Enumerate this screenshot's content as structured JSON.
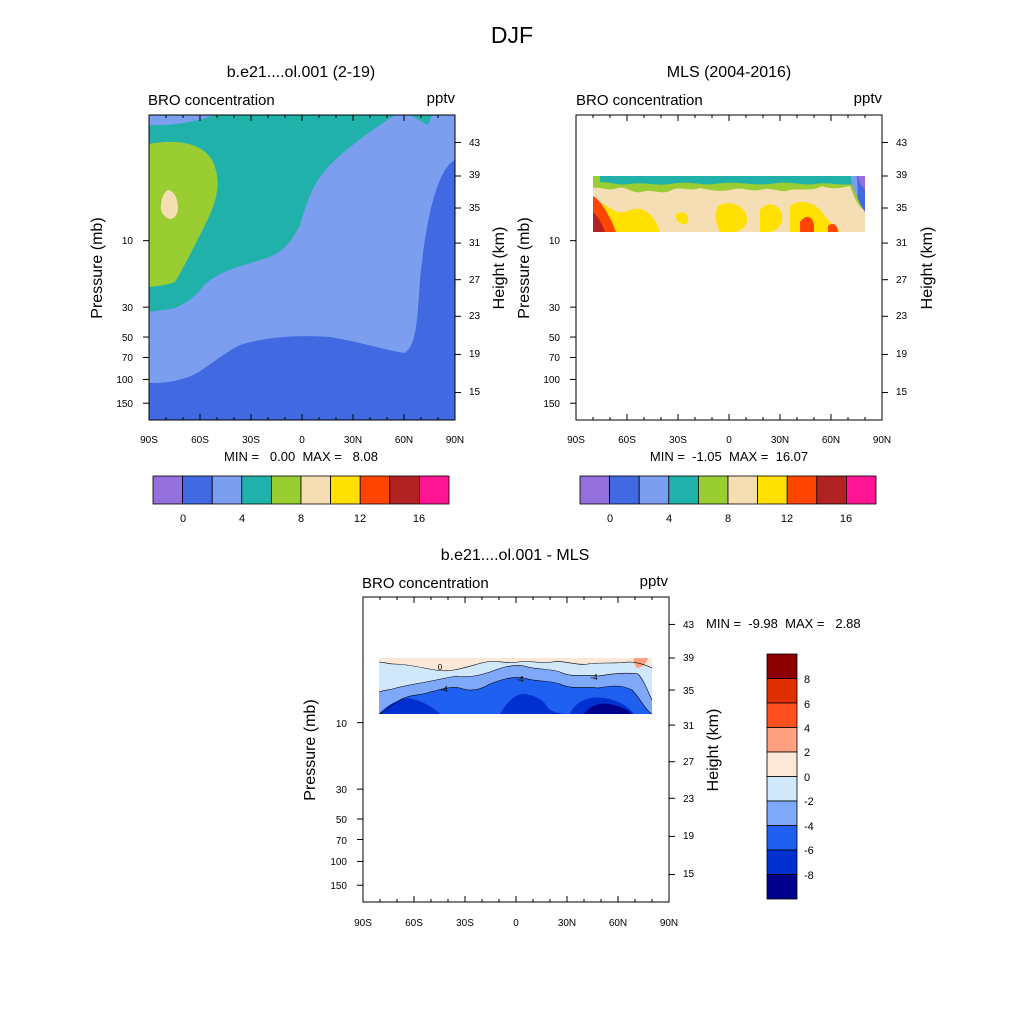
{
  "title": "DJF",
  "chart_data": [
    {
      "type": "heatmap",
      "title": "b.e21....ol.001 (2-19)",
      "left_label": "BRO concentration",
      "right_label": "pptv",
      "xlabel": "",
      "ylabel": "Pressure (mb)",
      "ylabel_right": "Height (km)",
      "x_ticks": [
        "90S",
        "60S",
        "30S",
        "0",
        "30N",
        "60N",
        "90N"
      ],
      "pressure_ticks": [
        "10",
        "30",
        "50",
        "70",
        "100",
        "150"
      ],
      "height_ticks": [
        "43",
        "39",
        "35",
        "31",
        "27",
        "23",
        "19",
        "15"
      ],
      "min_max_text": "MIN =   0.00  MAX =   8.08",
      "min": 0.0,
      "max": 8.08,
      "colorbar": {
        "tick_labels": [
          "0",
          "4",
          "8",
          "12",
          "16"
        ],
        "colors": [
          "#9370DB",
          "#4169E1",
          "#7B9EEE",
          "#20B2AA",
          "#9ACD32",
          "#F5DEB3",
          "#FFE000",
          "#FF4500",
          "#B22222",
          "#FF1493"
        ]
      }
    },
    {
      "type": "heatmap",
      "title": "MLS (2004-2016)",
      "left_label": "BRO concentration",
      "right_label": "pptv",
      "xlabel": "",
      "ylabel": "Pressure (mb)",
      "ylabel_right": "Height (km)",
      "x_ticks": [
        "90S",
        "60S",
        "30S",
        "0",
        "30N",
        "60N",
        "90N"
      ],
      "pressure_ticks": [
        "10",
        "30",
        "50",
        "70",
        "100",
        "150"
      ],
      "height_ticks": [
        "43",
        "39",
        "35",
        "31",
        "27",
        "23",
        "19",
        "15"
      ],
      "min_max_text": "MIN =  -1.05  MAX =  16.07",
      "min": -1.05,
      "max": 16.07,
      "colorbar": {
        "tick_labels": [
          "0",
          "4",
          "8",
          "12",
          "16"
        ],
        "colors": [
          "#9370DB",
          "#4169E1",
          "#7B9EEE",
          "#20B2AA",
          "#9ACD32",
          "#F5DEB3",
          "#FFE000",
          "#FF4500",
          "#B22222",
          "#FF1493"
        ]
      }
    },
    {
      "type": "heatmap",
      "title": "b.e21....ol.001 - MLS",
      "left_label": "BRO concentration",
      "right_label": "pptv",
      "xlabel": "",
      "ylabel": "Pressure (mb)",
      "ylabel_right": "Height (km)",
      "x_ticks": [
        "90S",
        "60S",
        "30S",
        "0",
        "30N",
        "60N",
        "90N"
      ],
      "pressure_ticks": [
        "10",
        "30",
        "50",
        "70",
        "100",
        "150"
      ],
      "height_ticks": [
        "43",
        "39",
        "35",
        "31",
        "27",
        "23",
        "19",
        "15"
      ],
      "min_max_text": "MIN =  -9.98  MAX =   2.88",
      "min": -9.98,
      "max": 2.88,
      "contour_labels": [
        "0",
        "-4",
        "-4",
        "-4"
      ],
      "colorbar": {
        "tick_labels": [
          "8",
          "6",
          "4",
          "2",
          "0",
          "-2",
          "-4",
          "-6",
          "-8"
        ],
        "colors": [
          "#8B0000",
          "#E03000",
          "#FF5020",
          "#FFA080",
          "#FCE8D8",
          "#D0E8FA",
          "#80A8F8",
          "#2060F0",
          "#0030D0",
          "#00008B"
        ]
      }
    }
  ]
}
